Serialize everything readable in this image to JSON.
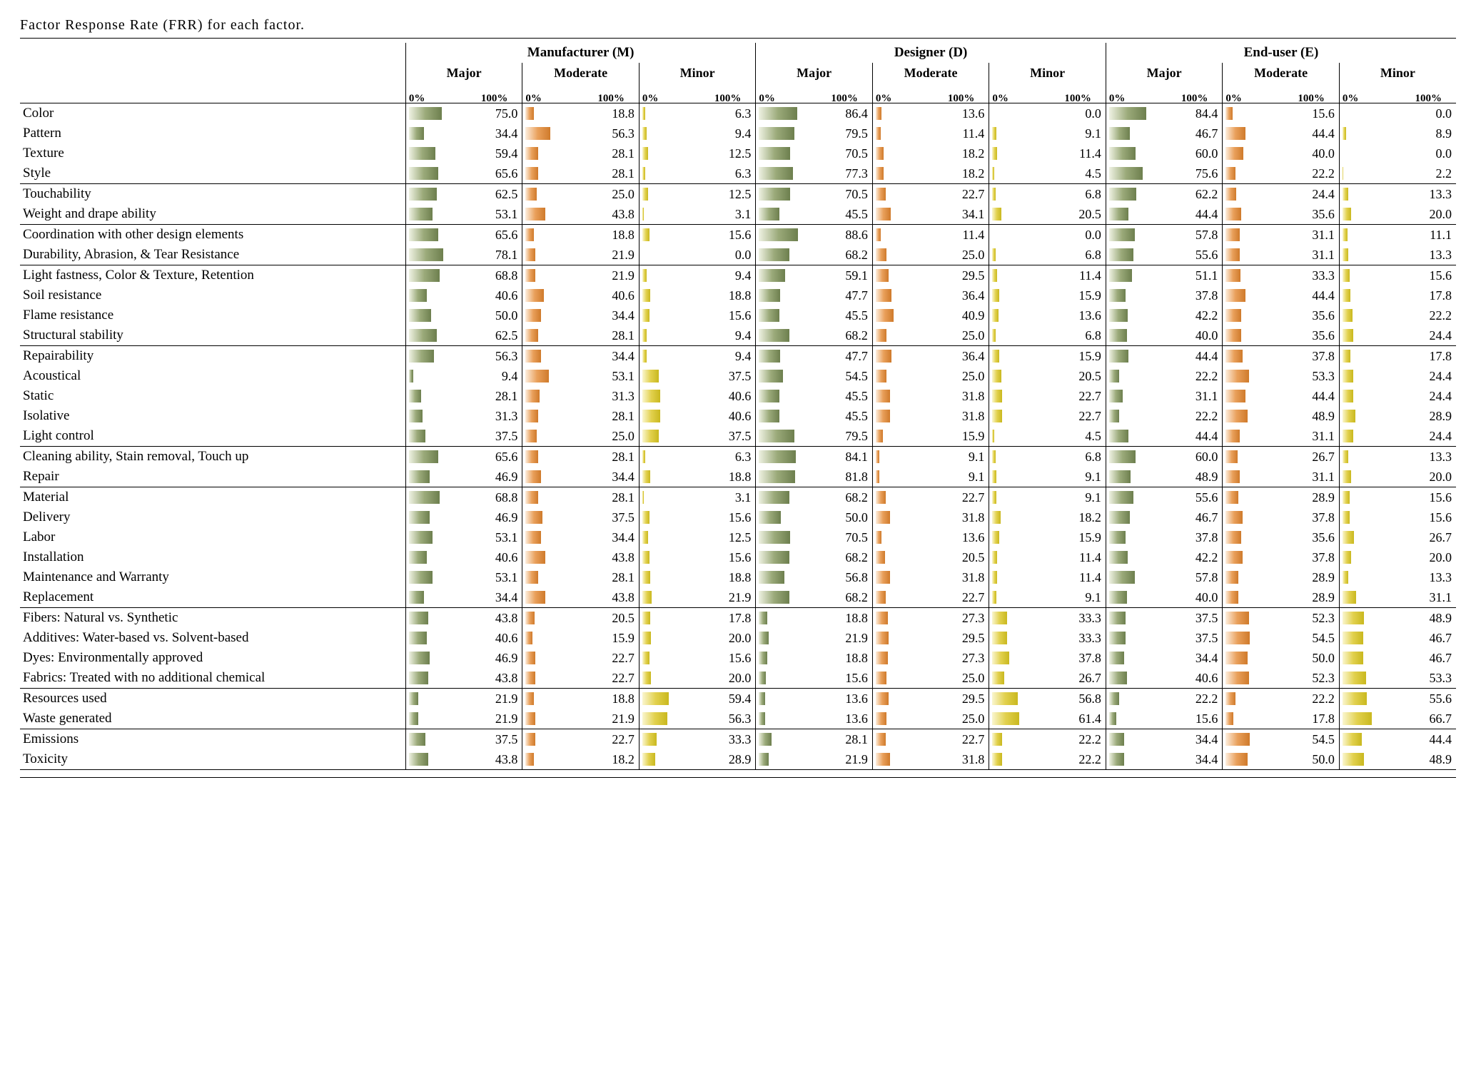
{
  "title": "Factor Response Rate (FRR) for each factor.",
  "colors": {
    "major": "linear-gradient(90deg,#eff2e3 0%,#9baa7a 50%,#6d7f4e 100%)",
    "moderate": "linear-gradient(90deg,#fdeede 0%,#e9a05b 50%,#cf7a2b 100%)",
    "minor": "linear-gradient(90deg,#faf6cf 0%,#e2d14e 50%,#c9b81f 100%)"
  },
  "groups": [
    {
      "key": "M",
      "label": "Manufacturer (M)"
    },
    {
      "key": "D",
      "label": "Designer (D)"
    },
    {
      "key": "E",
      "label": "End-user (E)"
    }
  ],
  "levels": [
    "Major",
    "Moderate",
    "Minor"
  ],
  "axis": {
    "low": "0%",
    "high": "100%"
  },
  "sections": [
    {
      "rows": [
        {
          "label": "Color",
          "M": [
            75.0,
            18.8,
            6.3
          ],
          "D": [
            86.4,
            13.6,
            0.0
          ],
          "E": [
            84.4,
            15.6,
            0.0
          ]
        },
        {
          "label": "Pattern",
          "M": [
            34.4,
            56.3,
            9.4
          ],
          "D": [
            79.5,
            11.4,
            9.1
          ],
          "E": [
            46.7,
            44.4,
            8.9
          ]
        },
        {
          "label": "Texture",
          "M": [
            59.4,
            28.1,
            12.5
          ],
          "D": [
            70.5,
            18.2,
            11.4
          ],
          "E": [
            60.0,
            40.0,
            0.0
          ]
        },
        {
          "label": "Style",
          "M": [
            65.6,
            28.1,
            6.3
          ],
          "D": [
            77.3,
            18.2,
            4.5
          ],
          "E": [
            75.6,
            22.2,
            2.2
          ]
        }
      ]
    },
    {
      "rows": [
        {
          "label": "Touchability",
          "M": [
            62.5,
            25.0,
            12.5
          ],
          "D": [
            70.5,
            22.7,
            6.8
          ],
          "E": [
            62.2,
            24.4,
            13.3
          ]
        },
        {
          "label": "Weight and drape ability",
          "M": [
            53.1,
            43.8,
            3.1
          ],
          "D": [
            45.5,
            34.1,
            20.5
          ],
          "E": [
            44.4,
            35.6,
            20.0
          ]
        }
      ]
    },
    {
      "rows": [
        {
          "label": "Coordination with other design elements",
          "M": [
            65.6,
            18.8,
            15.6
          ],
          "D": [
            88.6,
            11.4,
            0.0
          ],
          "E": [
            57.8,
            31.1,
            11.1
          ]
        },
        {
          "label": "Durability, Abrasion, & Tear Resistance",
          "M": [
            78.1,
            21.9,
            0.0
          ],
          "D": [
            68.2,
            25.0,
            6.8
          ],
          "E": [
            55.6,
            31.1,
            13.3
          ]
        }
      ]
    },
    {
      "rows": [
        {
          "label": "Light fastness, Color & Texture, Retention",
          "M": [
            68.8,
            21.9,
            9.4
          ],
          "D": [
            59.1,
            29.5,
            11.4
          ],
          "E": [
            51.1,
            33.3,
            15.6
          ]
        },
        {
          "label": "Soil resistance",
          "M": [
            40.6,
            40.6,
            18.8
          ],
          "D": [
            47.7,
            36.4,
            15.9
          ],
          "E": [
            37.8,
            44.4,
            17.8
          ]
        },
        {
          "label": "Flame resistance",
          "M": [
            50.0,
            34.4,
            15.6
          ],
          "D": [
            45.5,
            40.9,
            13.6
          ],
          "E": [
            42.2,
            35.6,
            22.2
          ]
        },
        {
          "label": "Structural stability",
          "M": [
            62.5,
            28.1,
            9.4
          ],
          "D": [
            68.2,
            25.0,
            6.8
          ],
          "E": [
            40.0,
            35.6,
            24.4
          ]
        }
      ]
    },
    {
      "rows": [
        {
          "label": "Repairability",
          "M": [
            56.3,
            34.4,
            9.4
          ],
          "D": [
            47.7,
            36.4,
            15.9
          ],
          "E": [
            44.4,
            37.8,
            17.8
          ]
        },
        {
          "label": "Acoustical",
          "M": [
            9.4,
            53.1,
            37.5
          ],
          "D": [
            54.5,
            25.0,
            20.5
          ],
          "E": [
            22.2,
            53.3,
            24.4
          ]
        },
        {
          "label": "Static",
          "M": [
            28.1,
            31.3,
            40.6
          ],
          "D": [
            45.5,
            31.8,
            22.7
          ],
          "E": [
            31.1,
            44.4,
            24.4
          ]
        },
        {
          "label": "Isolative",
          "M": [
            31.3,
            28.1,
            40.6
          ],
          "D": [
            45.5,
            31.8,
            22.7
          ],
          "E": [
            22.2,
            48.9,
            28.9
          ]
        },
        {
          "label": "Light control",
          "M": [
            37.5,
            25.0,
            37.5
          ],
          "D": [
            79.5,
            15.9,
            4.5
          ],
          "E": [
            44.4,
            31.1,
            24.4
          ]
        }
      ]
    },
    {
      "rows": [
        {
          "label": "Cleaning ability, Stain removal, Touch up",
          "M": [
            65.6,
            28.1,
            6.3
          ],
          "D": [
            84.1,
            9.1,
            6.8
          ],
          "E": [
            60.0,
            26.7,
            13.3
          ]
        },
        {
          "label": "Repair",
          "M": [
            46.9,
            34.4,
            18.8
          ],
          "D": [
            81.8,
            9.1,
            9.1
          ],
          "E": [
            48.9,
            31.1,
            20.0
          ]
        }
      ]
    },
    {
      "rows": [
        {
          "label": "Material",
          "M": [
            68.8,
            28.1,
            3.1
          ],
          "D": [
            68.2,
            22.7,
            9.1
          ],
          "E": [
            55.6,
            28.9,
            15.6
          ]
        },
        {
          "label": "Delivery",
          "M": [
            46.9,
            37.5,
            15.6
          ],
          "D": [
            50.0,
            31.8,
            18.2
          ],
          "E": [
            46.7,
            37.8,
            15.6
          ]
        },
        {
          "label": "Labor",
          "M": [
            53.1,
            34.4,
            12.5
          ],
          "D": [
            70.5,
            13.6,
            15.9
          ],
          "E": [
            37.8,
            35.6,
            26.7
          ]
        },
        {
          "label": "Installation",
          "M": [
            40.6,
            43.8,
            15.6
          ],
          "D": [
            68.2,
            20.5,
            11.4
          ],
          "E": [
            42.2,
            37.8,
            20.0
          ]
        },
        {
          "label": "Maintenance and Warranty",
          "M": [
            53.1,
            28.1,
            18.8
          ],
          "D": [
            56.8,
            31.8,
            11.4
          ],
          "E": [
            57.8,
            28.9,
            13.3
          ]
        },
        {
          "label": "Replacement",
          "M": [
            34.4,
            43.8,
            21.9
          ],
          "D": [
            68.2,
            22.7,
            9.1
          ],
          "E": [
            40.0,
            28.9,
            31.1
          ]
        }
      ]
    },
    {
      "rows": [
        {
          "label": "Fibers: Natural vs. Synthetic",
          "M": [
            43.8,
            20.5,
            17.8
          ],
          "D": [
            18.8,
            27.3,
            33.3
          ],
          "E": [
            37.5,
            52.3,
            48.9
          ]
        },
        {
          "label": "Additives: Water-based vs. Solvent-based",
          "M": [
            40.6,
            15.9,
            20.0
          ],
          "D": [
            21.9,
            29.5,
            33.3
          ],
          "E": [
            37.5,
            54.5,
            46.7
          ]
        },
        {
          "label": "Dyes: Environmentally approved",
          "M": [
            46.9,
            22.7,
            15.6
          ],
          "D": [
            18.8,
            27.3,
            37.8
          ],
          "E": [
            34.4,
            50.0,
            46.7
          ]
        },
        {
          "label": "Fabrics: Treated with no additional chemical",
          "M": [
            43.8,
            22.7,
            20.0
          ],
          "D": [
            15.6,
            25.0,
            26.7
          ],
          "E": [
            40.6,
            52.3,
            53.3
          ]
        }
      ]
    },
    {
      "rows": [
        {
          "label": "Resources used",
          "M": [
            21.9,
            18.8,
            59.4
          ],
          "D": [
            13.6,
            29.5,
            56.8
          ],
          "E": [
            22.2,
            22.2,
            55.6
          ]
        },
        {
          "label": "Waste generated",
          "M": [
            21.9,
            21.9,
            56.3
          ],
          "D": [
            13.6,
            25.0,
            61.4
          ],
          "E": [
            15.6,
            17.8,
            66.7
          ]
        }
      ]
    },
    {
      "rows": [
        {
          "label": "Emissions",
          "M": [
            37.5,
            22.7,
            33.3
          ],
          "D": [
            28.1,
            22.7,
            22.2
          ],
          "E": [
            34.4,
            54.5,
            44.4
          ]
        },
        {
          "label": "Toxicity",
          "M": [
            43.8,
            18.2,
            28.9
          ],
          "D": [
            21.9,
            31.8,
            22.2
          ],
          "E": [
            34.4,
            50.0,
            48.9
          ]
        }
      ]
    }
  ]
}
